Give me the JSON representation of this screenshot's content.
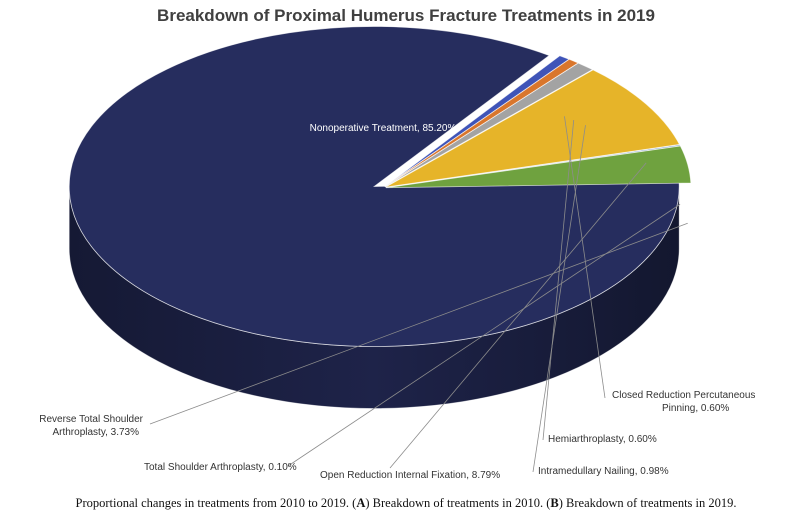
{
  "chart_data": {
    "type": "pie",
    "title": "Breakdown of Proximal Humerus Fracture Treatments in 2019",
    "slices": [
      {
        "name": "Nonoperative Treatment",
        "value": 85.2,
        "label": "Nonoperative Treatment, 85.20%",
        "color": "#262d5e"
      },
      {
        "name": "Closed Reduction Percutaneous Pinning",
        "value": 0.6,
        "label": "Closed Reduction Percutaneous Pinning, 0.60%",
        "color": "#3f54b8"
      },
      {
        "name": "Hemiarthroplasty",
        "value": 0.6,
        "label": "Hemiarthroplasty, 0.60%",
        "color": "#d9762c"
      },
      {
        "name": "Intramedullary Nailing",
        "value": 0.98,
        "label": "Intramedullary Nailing, 0.98%",
        "color": "#a3a3a3"
      },
      {
        "name": "Open Reduction Internal Fixation",
        "value": 8.79,
        "label": "Open Reduction Internal Fixation, 8.79%",
        "color": "#e6b429"
      },
      {
        "name": "Total Shoulder Arthroplasty",
        "value": 0.1,
        "label": "Total Shoulder Arthroplasty, 0.10%",
        "color": "#4a78b5"
      },
      {
        "name": "Reverse Total Shoulder Arthroplasty",
        "value": 3.73,
        "label": "Reverse Total Shoulder Arthroplasty, 3.73%",
        "color": "#6fa23f"
      }
    ],
    "legend": "none",
    "style": "3d-exploded"
  },
  "caption": {
    "prefix": "Proportional changes in treatments from 2010 to 2019. (",
    "a_letter": "A",
    "middle": ") Breakdown of treatments in 2010. (",
    "b_letter": "B",
    "suffix": ") Breakdown of treatments in 2019."
  }
}
